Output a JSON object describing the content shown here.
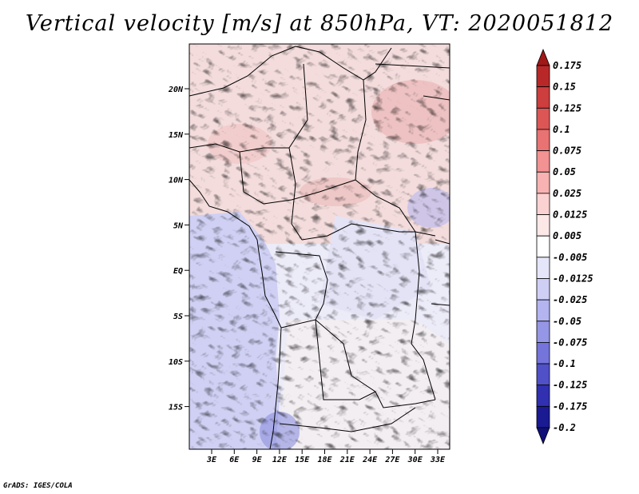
{
  "title": "Vertical velocity [m/s] at 850hPa, VT: 2020051812",
  "credit": "GrADS: IGES/COLA",
  "map": {
    "lat_labels": [
      "20N",
      "15N",
      "10N",
      "5N",
      "EQ",
      "5S",
      "10S",
      "15S"
    ],
    "lon_labels": [
      "3E",
      "6E",
      "9E",
      "12E",
      "15E",
      "18E",
      "21E",
      "24E",
      "27E",
      "30E",
      "33E"
    ]
  },
  "colorbar": {
    "labels": [
      "0.175",
      "0.15",
      "0.125",
      "0.1",
      "0.075",
      "0.05",
      "0.025",
      "0.0125",
      "0.005",
      "-0.005",
      "-0.0125",
      "-0.025",
      "-0.05",
      "-0.075",
      "-0.1",
      "-0.125",
      "-0.175",
      "-0.2"
    ],
    "colors": [
      "#a01818",
      "#b92828",
      "#cd3e3e",
      "#dc5656",
      "#e97272",
      "#f29292",
      "#f8b2b2",
      "#fbd2d2",
      "#fde8e8",
      "#ffffff",
      "#e6e6fa",
      "#cfcff6",
      "#b4b4f0",
      "#9696e6",
      "#7474da",
      "#5050c8",
      "#3030b0",
      "#1a1a92",
      "#10107a"
    ]
  }
}
